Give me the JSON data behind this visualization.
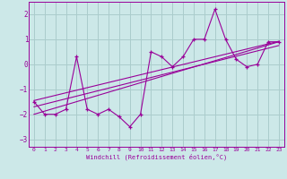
{
  "xlabel": "Windchill (Refroidissement éolien,°C)",
  "bg_color": "#cce8e8",
  "line_color": "#990099",
  "grid_color": "#aacccc",
  "x_data": [
    0,
    1,
    2,
    3,
    4,
    5,
    6,
    7,
    8,
    9,
    10,
    11,
    12,
    13,
    14,
    15,
    16,
    17,
    18,
    19,
    20,
    21,
    22,
    23
  ],
  "y_main": [
    -1.5,
    -2.0,
    -2.0,
    -1.8,
    0.3,
    -1.8,
    -2.0,
    -1.8,
    -2.1,
    -2.5,
    -2.0,
    0.5,
    0.3,
    -0.1,
    0.3,
    1.0,
    1.0,
    2.2,
    1.0,
    0.2,
    -0.1,
    0.0,
    0.9,
    0.9
  ],
  "ylim": [
    -3.3,
    2.5
  ],
  "xlim": [
    -0.5,
    23.5
  ],
  "yticks": [
    -3,
    -2,
    -1,
    0,
    1,
    2
  ],
  "xticks": [
    0,
    1,
    2,
    3,
    4,
    5,
    6,
    7,
    8,
    9,
    10,
    11,
    12,
    13,
    14,
    15,
    16,
    17,
    18,
    19,
    20,
    21,
    22,
    23
  ],
  "trend1_x": [
    0,
    23
  ],
  "trend1_y": [
    -2.0,
    0.9
  ],
  "trend2_x": [
    0,
    23
  ],
  "trend2_y": [
    -1.7,
    0.75
  ],
  "trend3_x": [
    0,
    23
  ],
  "trend3_y": [
    -1.45,
    0.92
  ]
}
